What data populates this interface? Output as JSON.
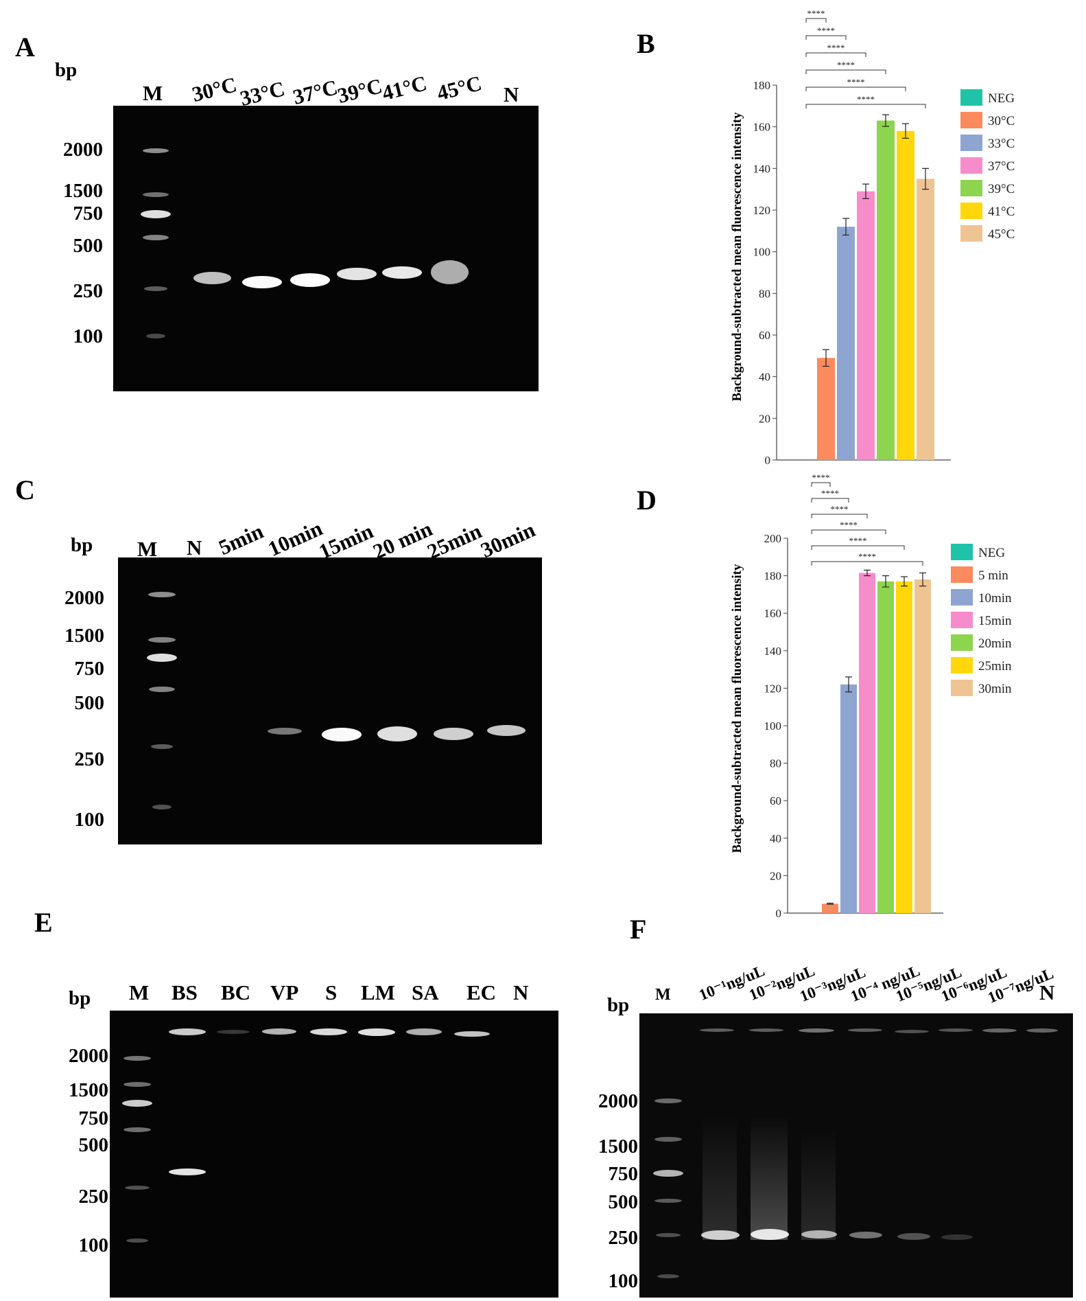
{
  "panels": {
    "A": {
      "letter": "A",
      "bp": "bp",
      "ladder": [
        "2000",
        "1500",
        "750",
        "500",
        "250",
        "100"
      ],
      "lanes": [
        "M",
        "30°C",
        "33°C",
        "37°C",
        "39°C",
        "41°C",
        "45°C",
        "N"
      ]
    },
    "B": {
      "letter": "B"
    },
    "C": {
      "letter": "C",
      "bp": "bp",
      "ladder": [
        "2000",
        "1500",
        "750",
        "500",
        "250",
        "100"
      ],
      "lanes": [
        "M",
        "N",
        "5min",
        "10min",
        "15min",
        "20 min",
        "25min",
        "30min"
      ]
    },
    "D": {
      "letter": "D"
    },
    "E": {
      "letter": "E",
      "bp": "bp",
      "ladder": [
        "2000",
        "1500",
        "750",
        "500",
        "250",
        "100"
      ],
      "lanes": [
        "M",
        "BS",
        "BC",
        "VP",
        "S",
        "LM",
        "SA",
        "EC",
        "N"
      ]
    },
    "F": {
      "letter": "F",
      "bp": "bp",
      "ladder": [
        "2000",
        "1500",
        "750",
        "500",
        "250",
        "100"
      ],
      "lanes": [
        "M",
        "10⁻¹ng/uL",
        "10⁻²ng/uL",
        "10⁻³ng/uL",
        "10⁻⁴ ng/uL",
        "10⁻⁵ng/uL",
        "10⁻⁶ng/uL",
        "10⁻⁷ng/uL",
        "N"
      ]
    }
  },
  "chart_data": [
    {
      "panel": "B",
      "type": "bar",
      "ylabel": "Background-subtracted mean fluorescence intensity",
      "ylim": [
        0,
        180
      ],
      "yticks": [
        0,
        20,
        40,
        60,
        80,
        100,
        120,
        140,
        160,
        180
      ],
      "categories": [
        "NEG",
        "30°C",
        "33°C",
        "37°C",
        "39°C",
        "41°C",
        "45°C"
      ],
      "values": [
        0,
        49,
        112,
        129,
        163,
        158,
        135
      ],
      "errors": [
        0,
        4,
        4,
        3.5,
        2.8,
        3.5,
        5
      ],
      "colors": [
        "#1fc4a8",
        "#fb8a5c",
        "#8ea5d1",
        "#f78ccb",
        "#8dd44f",
        "#ffd70a",
        "#efc493"
      ],
      "significance": [
        "****",
        "****",
        "****",
        "****",
        "****",
        "****"
      ],
      "legend": [
        "NEG",
        "30°C",
        "33°C",
        "37°C",
        "39°C",
        "41°C",
        "45°C"
      ],
      "legend_position": "right"
    },
    {
      "panel": "D",
      "type": "bar",
      "ylabel": "Background-subtracted mean fluorescence intensity",
      "ylim": [
        0,
        200
      ],
      "yticks": [
        0,
        20,
        40,
        60,
        80,
        100,
        120,
        140,
        160,
        180,
        200
      ],
      "categories": [
        "NEG",
        "5 min",
        "10min",
        "15min",
        "20min",
        "25min",
        "30min"
      ],
      "values": [
        0,
        5,
        122,
        181.5,
        177,
        177,
        178
      ],
      "errors": [
        0,
        0.3,
        4,
        1.5,
        3,
        2.5,
        3.5
      ],
      "colors": [
        "#1fc4a8",
        "#fb8a5c",
        "#8ea5d1",
        "#f78ccb",
        "#8dd44f",
        "#ffd70a",
        "#efc493"
      ],
      "significance": [
        "****",
        "****",
        "****",
        "****",
        "****",
        "****"
      ],
      "legend": [
        "NEG",
        "5 min",
        "10min",
        "15min",
        "20min",
        "25min",
        "30min"
      ],
      "legend_position": "right"
    }
  ]
}
